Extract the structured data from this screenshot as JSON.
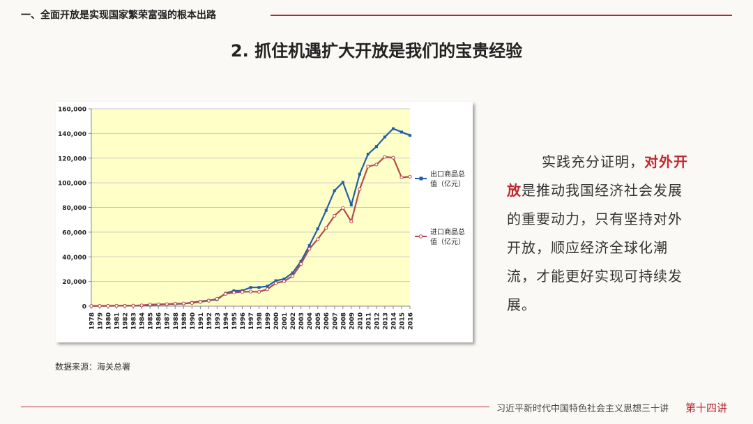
{
  "header": {
    "section_title": "一、全面开放是实现国家繁荣富强的根本出路"
  },
  "slide_title": "2. 抓住机遇扩大开放是我们的宝贵经验",
  "source_note": "数据来源：海关总署",
  "body": {
    "part1": "实践充分证明，",
    "highlight": "对外开放",
    "part2": "是推动我国经济社会发展的重要动力，只有坚持对外开放，顺应经济全球化潮流，才能更好实现可持续发展。"
  },
  "footer": {
    "series": "习近平新时代中国特色社会主义思想三十讲",
    "lecture": "第十四讲"
  },
  "colors": {
    "accent": "#b3272d",
    "plot_bg": "#ffffc8",
    "export_line": "#1f5ea8",
    "import_line": "#b5494f"
  },
  "chart_data": {
    "type": "line",
    "title": "",
    "xlabel": "",
    "ylabel": "",
    "ylim": [
      0,
      160000
    ],
    "yticks": [
      0,
      20000,
      40000,
      60000,
      80000,
      100000,
      120000,
      140000,
      160000
    ],
    "ytick_labels": [
      "0",
      "20,000",
      "40,000",
      "60,000",
      "80,000",
      "100,000",
      "120,000",
      "140,000",
      "160,000"
    ],
    "grid": true,
    "legend_position": "right",
    "categories": [
      "1978",
      "1979",
      "1980",
      "1981",
      "1982",
      "1983",
      "1984",
      "1985",
      "1986",
      "1987",
      "1988",
      "1989",
      "1990",
      "1991",
      "1992",
      "1993",
      "1994",
      "1995",
      "1996",
      "1997",
      "1998",
      "1999",
      "2000",
      "2001",
      "2002",
      "2003",
      "2004",
      "2005",
      "2006",
      "2007",
      "2008",
      "2009",
      "2010",
      "2011",
      "2012",
      "2013",
      "2014",
      "2015",
      "2016"
    ],
    "series": [
      {
        "name": "出口商品总值（亿元）",
        "legend_lines": [
          "出口商品总",
          "值（亿元）"
        ],
        "color": "#1f5ea8",
        "values": [
          168,
          212,
          271,
          368,
          414,
          438,
          581,
          809,
          1082,
          1470,
          1767,
          1956,
          2986,
          3827,
          4676,
          5285,
          10422,
          12452,
          12576,
          15161,
          15224,
          16160,
          20634,
          22024,
          26948,
          36288,
          49103,
          62648,
          77597,
          93627,
          100395,
          82030,
          107023,
          123241,
          129359,
          137131,
          143884,
          141167,
          138419
        ]
      },
      {
        "name": "进口商品总值（亿元）",
        "legend_lines": [
          "进口商品总",
          "值（亿元）"
        ],
        "color": "#b5494f",
        "values": [
          187,
          243,
          299,
          368,
          358,
          422,
          621,
          1258,
          1498,
          1614,
          2055,
          2200,
          2574,
          3399,
          4443,
          5986,
          9960,
          11048,
          11557,
          11807,
          11626,
          13736,
          18639,
          20159,
          24430,
          34196,
          46436,
          54274,
          63377,
          73300,
          79527,
          68618,
          94700,
          113161,
          114801,
          121037,
          120358,
          104336,
          104932
        ]
      }
    ]
  }
}
